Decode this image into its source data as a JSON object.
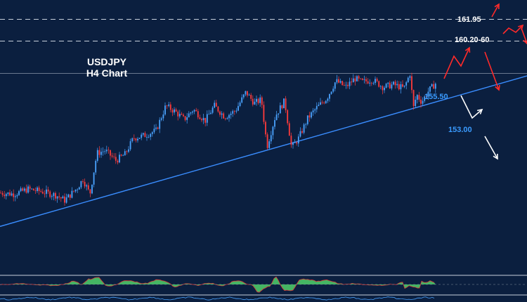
{
  "chart_data": {
    "type": "candlestick",
    "title_line1": "USDJPY",
    "title_line2": "H4 Chart",
    "ylim": [
      146.0,
      163.5
    ],
    "xlim": [
      0,
      620
    ],
    "price": [
      [
        0,
        148.0
      ],
      [
        20,
        147.9
      ],
      [
        40,
        148.3
      ],
      [
        60,
        148.1
      ],
      [
        80,
        147.8
      ],
      [
        92,
        147.4
      ],
      [
        110,
        148.4
      ],
      [
        118,
        149.1
      ],
      [
        128,
        147.9
      ],
      [
        138,
        151.2
      ],
      [
        150,
        151.4
      ],
      [
        165,
        150.6
      ],
      [
        178,
        151.1
      ],
      [
        190,
        152.4
      ],
      [
        205,
        152.6
      ],
      [
        222,
        153.0
      ],
      [
        236,
        155.0
      ],
      [
        250,
        154.5
      ],
      [
        262,
        153.9
      ],
      [
        275,
        154.7
      ],
      [
        292,
        153.8
      ],
      [
        305,
        155.0
      ],
      [
        320,
        154.1
      ],
      [
        335,
        154.6
      ],
      [
        350,
        156.1
      ],
      [
        362,
        155.2
      ],
      [
        372,
        155.5
      ],
      [
        380,
        151.7
      ],
      [
        392,
        154.2
      ],
      [
        405,
        155.4
      ],
      [
        415,
        151.6
      ],
      [
        425,
        152.4
      ],
      [
        438,
        154.0
      ],
      [
        450,
        154.8
      ],
      [
        465,
        155.6
      ],
      [
        478,
        157.0
      ],
      [
        492,
        156.5
      ],
      [
        505,
        157.2
      ],
      [
        515,
        156.9
      ],
      [
        530,
        157.1
      ],
      [
        545,
        156.5
      ],
      [
        560,
        156.7
      ],
      [
        575,
        156.4
      ],
      [
        585,
        157.8
      ],
      [
        587,
        154.5
      ],
      [
        593,
        155.9
      ],
      [
        600,
        155.3
      ],
      [
        610,
        156.2
      ],
      [
        620,
        156.8
      ]
    ],
    "levels": [
      {
        "value": 161.95,
        "label": "161.95"
      },
      {
        "value": 160.2,
        "label": "160.20-60"
      }
    ],
    "current_price": 157.6,
    "support_labels": [
      {
        "value": 155.5,
        "label": "155.50"
      },
      {
        "value": 153.0,
        "label": "153.00"
      }
    ],
    "trendline": [
      [
        0,
        145.3
      ],
      [
        750,
        157.4
      ]
    ],
    "colors": {
      "background": "#0b1f3f",
      "bull": "#4aa3ff",
      "bear": "#ff3b3b",
      "trend": "#3a8dff",
      "level": "#c8d0dc",
      "up_arrow": "#ff2a2a",
      "down_arrow": "#ffffff",
      "osc_fill": "#4fd06a"
    }
  }
}
